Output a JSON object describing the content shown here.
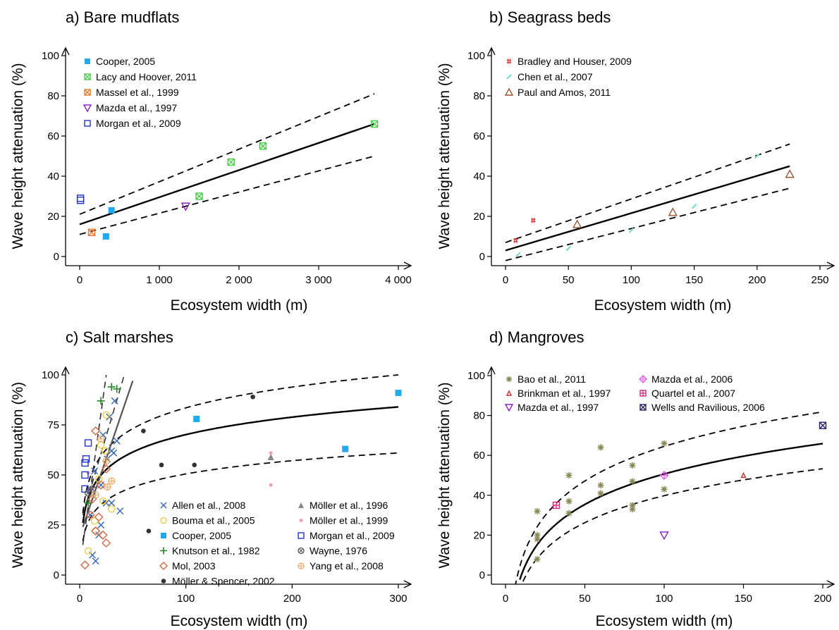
{
  "chart_data": [
    {
      "type": "scatter",
      "title": "a) Bare mudflats",
      "xlabel": "Ecosystem width (m)",
      "ylabel": "Wave height attenuation (%)",
      "xlim": [
        0,
        4000
      ],
      "ylim": [
        0,
        100
      ],
      "xticks": [
        0,
        1000,
        2000,
        3000,
        4000
      ],
      "xtick_labels": [
        "0",
        "1 000",
        "2 000",
        "3 000",
        "4 000"
      ],
      "yticks": [
        0,
        20,
        40,
        60,
        80,
        100
      ],
      "ytick_labels": [
        "0",
        "20",
        "40",
        "60",
        "80",
        "100"
      ],
      "legend_position": "top-left",
      "series": [
        {
          "name": "Cooper, 2005",
          "marker": "square-filled",
          "color": "#22aaee",
          "points": [
            [
              330,
              10
            ],
            [
              400,
              23
            ]
          ]
        },
        {
          "name": "Lacy and Hoover, 2011",
          "marker": "square-x",
          "color": "#44cc44",
          "points": [
            [
              1500,
              30
            ],
            [
              1900,
              47
            ],
            [
              2300,
              55
            ],
            [
              3700,
              66
            ]
          ]
        },
        {
          "name": "Massel et al., 1999",
          "marker": "square-x",
          "color": "#ee7722",
          "points": [
            [
              150,
              12
            ]
          ]
        },
        {
          "name": "Mazda et al., 1997",
          "marker": "triangle-down",
          "color": "#8822cc",
          "points": [
            [
              1330,
              25
            ]
          ]
        },
        {
          "name": "Morgan et al., 2009",
          "marker": "square-open",
          "color": "#2233cc",
          "points": [
            [
              10,
              28
            ],
            [
              10,
              29
            ]
          ]
        }
      ],
      "fit": {
        "kind": "linear",
        "x_range": [
          0,
          3700
        ],
        "fit": [
          16,
          66
        ],
        "upper": [
          21,
          81
        ],
        "lower": [
          11,
          50
        ]
      }
    },
    {
      "type": "scatter",
      "title": "b) Seagrass beds",
      "xlabel": "Ecosystem width (m)",
      "ylabel": "Wave height attenuation (%)",
      "xlim": [
        0,
        250
      ],
      "ylim": [
        0,
        100
      ],
      "xticks": [
        0,
        50,
        100,
        150,
        200,
        250
      ],
      "xtick_labels": [
        "0",
        "50",
        "100",
        "150",
        "200",
        "250"
      ],
      "yticks": [
        0,
        20,
        40,
        60,
        80,
        100
      ],
      "ytick_labels": [
        "0",
        "20",
        "40",
        "60",
        "80",
        "100"
      ],
      "legend_position": "top-left",
      "series": [
        {
          "name": "Bradley and Houser, 2009",
          "marker": "hash",
          "color": "#ee3333",
          "points": [
            [
              8,
              8
            ],
            [
              22,
              18
            ]
          ]
        },
        {
          "name": "Chen et al., 2007",
          "marker": "slash",
          "color": "#77ddcc",
          "points": [
            [
              10,
              1
            ],
            [
              50,
              4
            ],
            [
              100,
              13
            ],
            [
              150,
              25
            ],
            [
              200,
              50
            ]
          ]
        },
        {
          "name": "Paul and Amos, 2011",
          "marker": "triangle-up",
          "color": "#995533",
          "points": [
            [
              57,
              16
            ],
            [
              133,
              22
            ],
            [
              226,
              41
            ]
          ]
        }
      ],
      "fit": {
        "kind": "linear",
        "x_range": [
          0,
          226
        ],
        "fit": [
          3,
          45
        ],
        "upper": [
          7,
          56
        ],
        "lower": [
          -2,
          34
        ]
      }
    },
    {
      "type": "scatter",
      "title": "c) Salt marshes",
      "xlabel": "Ecosystem width (m)",
      "ylabel": "Wave height attenuation (%)",
      "xlim": [
        0,
        300
      ],
      "ylim": [
        0,
        100
      ],
      "xticks": [
        0,
        100,
        200,
        300
      ],
      "xtick_labels": [
        "0",
        "100",
        "200",
        "300"
      ],
      "yticks": [
        0,
        25,
        50,
        75,
        100
      ],
      "ytick_labels": [
        "0",
        "25",
        "50",
        "75",
        "100"
      ],
      "legend_position": "bottom-right",
      "legend_columns": 2,
      "series": [
        {
          "name": "Allen et al., 2008",
          "marker": "x",
          "color": "#3366bb",
          "points": [
            [
              12,
              10
            ],
            [
              15,
              7
            ],
            [
              20,
              25
            ],
            [
              25,
              36
            ],
            [
              30,
              62
            ],
            [
              35,
              67
            ],
            [
              38,
              32
            ],
            [
              28,
              79
            ],
            [
              33,
              87
            ],
            [
              14,
              52
            ],
            [
              18,
              20
            ],
            [
              22,
              70
            ],
            [
              30,
              36
            ],
            [
              20,
              45
            ],
            [
              10,
              30
            ],
            [
              26,
              58
            ],
            [
              32,
              61
            ]
          ]
        },
        {
          "name": "Bouma et al., 2005",
          "marker": "circle-open",
          "color": "#eecc44",
          "points": [
            [
              8,
              12
            ],
            [
              15,
              22
            ],
            [
              22,
              37
            ],
            [
              25,
              80
            ],
            [
              14,
              27
            ],
            [
              30,
              33
            ],
            [
              18,
              48
            ],
            [
              24,
              62
            ],
            [
              20,
              65
            ]
          ]
        },
        {
          "name": "Cooper, 2005",
          "marker": "square-filled",
          "color": "#22aaee",
          "points": [
            [
              110,
              78
            ],
            [
              250,
              63
            ],
            [
              300,
              91
            ]
          ]
        },
        {
          "name": "Knutson et al., 1982",
          "marker": "plus",
          "color": "#228822",
          "points": [
            [
              20,
              87
            ],
            [
              30,
              94
            ],
            [
              35,
              93
            ],
            [
              8,
              36
            ]
          ]
        },
        {
          "name": "Mol, 2003",
          "marker": "diamond-open",
          "color": "#dd6644",
          "points": [
            [
              5,
              5
            ],
            [
              15,
              22
            ],
            [
              25,
              16
            ],
            [
              12,
              38
            ],
            [
              20,
              45
            ],
            [
              15,
              72
            ],
            [
              25,
              53
            ],
            [
              10,
              30
            ],
            [
              22,
              20
            ],
            [
              18,
              29
            ]
          ]
        },
        {
          "name": "Möller & Spencer, 2002",
          "marker": "dot",
          "color": "#333333",
          "points": [
            [
              60,
              72
            ],
            [
              65,
              22
            ],
            [
              77,
              55
            ],
            [
              108,
              55
            ],
            [
              163,
              89
            ]
          ]
        },
        {
          "name": "Möller et al., 1996",
          "marker": "triangle-filled",
          "color": "#888888",
          "points": [
            [
              180,
              59
            ]
          ]
        },
        {
          "name": "Möller et al., 1999",
          "marker": "star",
          "color": "#ee99bb",
          "points": [
            [
              180,
              61
            ],
            [
              180,
              45
            ],
            [
              8,
              51
            ],
            [
              12,
              43
            ]
          ]
        },
        {
          "name": "Morgan et al., 2009",
          "marker": "square-open",
          "color": "#2233cc",
          "points": [
            [
              5,
              50
            ],
            [
              5,
              43
            ],
            [
              8,
              66
            ],
            [
              6,
              58
            ],
            [
              5,
              56
            ]
          ]
        },
        {
          "name": "Wayne, 1976",
          "marker": "circle-x",
          "color": "#555555",
          "points": [
            [
              8,
              41
            ],
            [
              12,
              43
            ]
          ]
        },
        {
          "name": "Yang et al., 2008",
          "marker": "circle-plus",
          "color": "#eeaa66",
          "points": [
            [
              20,
              68
            ],
            [
              26,
              44
            ],
            [
              30,
              47
            ],
            [
              15,
              40
            ],
            [
              25,
              57
            ]
          ]
        }
      ],
      "fits": [
        {
          "kind": "log",
          "x_range": [
            3,
            300
          ],
          "fit_start": 26,
          "fit_end": 84,
          "upper_start": 31,
          "upper_end": 100,
          "lower_start": 17,
          "lower_end": 61
        },
        {
          "kind": "linear-steep",
          "x_range": [
            3,
            50
          ],
          "fit": [
            24,
            97
          ]
        }
      ]
    },
    {
      "type": "scatter",
      "title": "d) Mangroves",
      "xlabel": "Ecosystem width (m)",
      "ylabel": "Wave height attenuation (%)",
      "xlim": [
        0,
        200
      ],
      "ylim": [
        0,
        100
      ],
      "xticks": [
        0,
        50,
        100,
        150,
        200
      ],
      "xtick_labels": [
        "0",
        "50",
        "100",
        "150",
        "200"
      ],
      "yticks": [
        0,
        20,
        40,
        60,
        80,
        100
      ],
      "ytick_labels": [
        "0",
        "20",
        "40",
        "60",
        "80",
        "100"
      ],
      "legend_position": "top-left",
      "legend_columns": 2,
      "series": [
        {
          "name": "Bao et al., 2011",
          "marker": "asterisk",
          "color": "#888855",
          "points": [
            [
              20,
              8
            ],
            [
              20,
              18
            ],
            [
              20,
              20
            ],
            [
              20,
              32
            ],
            [
              40,
              50
            ],
            [
              40,
              37
            ],
            [
              40,
              31
            ],
            [
              60,
              64
            ],
            [
              60,
              45
            ],
            [
              60,
              41
            ],
            [
              80,
              55
            ],
            [
              80,
              47
            ],
            [
              80,
              35
            ],
            [
              80,
              33
            ],
            [
              100,
              66
            ],
            [
              100,
              43
            ]
          ]
        },
        {
          "name": "Brinkman et al., 1997",
          "marker": "triangle-small",
          "color": "#cc3333",
          "points": [
            [
              150,
              50
            ]
          ]
        },
        {
          "name": "Mazda et al., 1997",
          "marker": "triangle-down",
          "color": "#8822cc",
          "points": [
            [
              100,
              20
            ]
          ]
        },
        {
          "name": "Mazda et al., 2006",
          "marker": "diamond-plus",
          "color": "#ee55ee",
          "points": [
            [
              100,
              50
            ]
          ]
        },
        {
          "name": "Quartel et al., 2007",
          "marker": "square-plus",
          "color": "#dd2277",
          "points": [
            [
              32,
              35
            ]
          ]
        },
        {
          "name": "Wells and Ravilious, 2006",
          "marker": "square-x",
          "color": "#222266",
          "points": [
            [
              200,
              75
            ]
          ]
        }
      ],
      "fit": {
        "kind": "log",
        "x_range": [
          10,
          200
        ]
      }
    }
  ]
}
